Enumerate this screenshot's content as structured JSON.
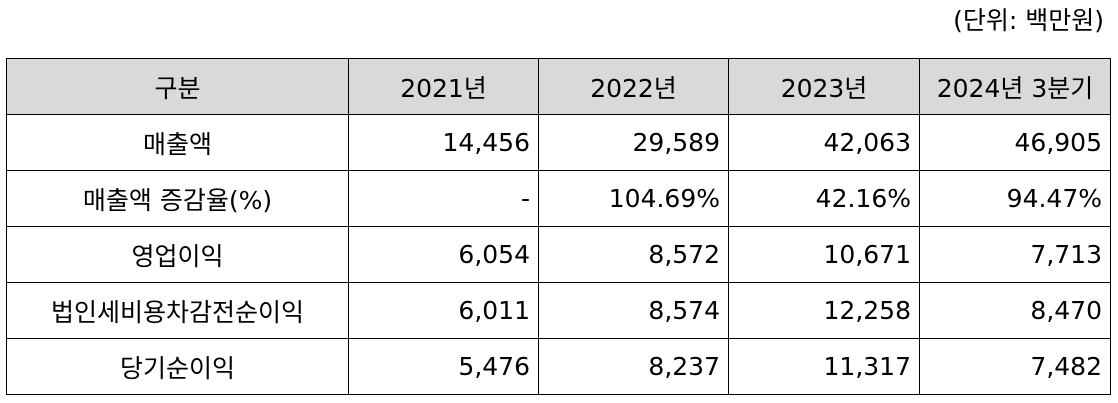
{
  "unit_note": "(단위: 백만원)",
  "table": {
    "headers": [
      "구분",
      "2021년",
      "2022년",
      "2023년",
      "2024년 3분기"
    ],
    "rows": [
      {
        "label": "매출액",
        "values": [
          "14,456",
          "29,589",
          "42,063",
          "46,905"
        ]
      },
      {
        "label": "매출액 증감율(%)",
        "values": [
          "-",
          "104.69%",
          "42.16%",
          "94.47%"
        ]
      },
      {
        "label": "영업이익",
        "values": [
          "6,054",
          "8,572",
          "10,671",
          "7,713"
        ]
      },
      {
        "label": "법인세비용차감전순이익",
        "values": [
          "6,011",
          "8,574",
          "12,258",
          "8,470"
        ]
      },
      {
        "label": "당기순이익",
        "values": [
          "5,476",
          "8,237",
          "11,317",
          "7,482"
        ]
      }
    ]
  }
}
